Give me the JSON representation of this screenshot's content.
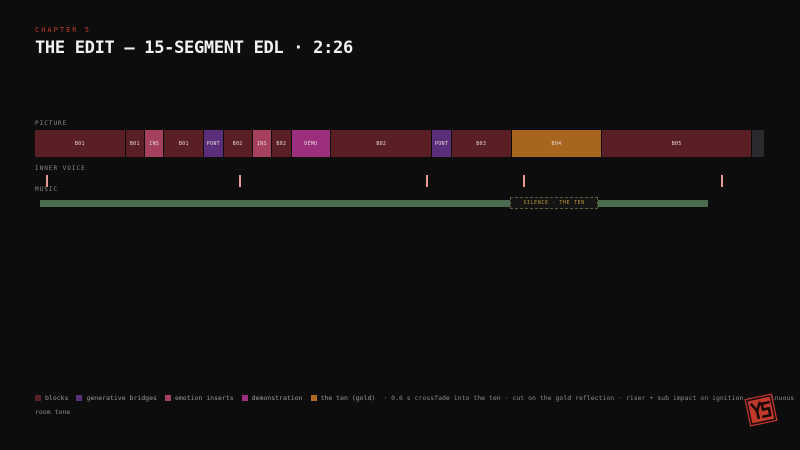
{
  "header": {
    "chapter": "CHAPTER 5",
    "title": "THE EDIT — 15-SEGMENT EDL · 2:26"
  },
  "tracks": {
    "picture_label": "PICTURE",
    "voice_label": "INNER VOICE",
    "music_label": "MUSIC"
  },
  "picture_segments": [
    {
      "label": "B01",
      "kind": "blocks",
      "duration": 11.2
    },
    {
      "label": "B01",
      "kind": "blocks",
      "duration": 2.4
    },
    {
      "label": "INS",
      "kind": "emotion",
      "duration": 2.4
    },
    {
      "label": "B01",
      "kind": "blocks",
      "duration": 4.9
    },
    {
      "label": "PONT",
      "kind": "bridge",
      "duration": 2.4
    },
    {
      "label": "B02",
      "kind": "blocks",
      "duration": 3.6
    },
    {
      "label": "INS",
      "kind": "emotion",
      "duration": 2.4
    },
    {
      "label": "B02",
      "kind": "blocks",
      "duration": 2.4
    },
    {
      "label": "DÉMO",
      "kind": "demo",
      "duration": 4.9
    },
    {
      "label": "B02",
      "kind": "blocks",
      "duration": 12.5
    },
    {
      "label": "PONT",
      "kind": "bridge",
      "duration": 2.4
    },
    {
      "label": "B03",
      "kind": "blocks",
      "duration": 7.4
    },
    {
      "label": "B04",
      "kind": "gold",
      "duration": 11.2
    },
    {
      "label": "B05",
      "kind": "blocks",
      "duration": 18.5
    },
    {
      "label": "",
      "kind": "tail",
      "duration": 1.6
    }
  ],
  "voice_cues": [
    1.5,
    28,
    53.6,
    66.8,
    94
  ],
  "music": {
    "silence_label": "SILENCE · THE TEN"
  },
  "legend": {
    "items": [
      {
        "label": "blocks",
        "color": "#5a1f24"
      },
      {
        "label": "generative bridges",
        "color": "#5b2e7a"
      },
      {
        "label": "emotion inserts",
        "color": "#a5405e"
      },
      {
        "label": "demonstration",
        "color": "#9b2f7e"
      },
      {
        "label": "the ten (gold)",
        "color": "#b06a1c"
      }
    ],
    "notes": "·   0.6 s crossfade into the ten · cut on the gold reflection · riser + sub impact on ignition · continuous room tone"
  },
  "colors": {
    "blocks": "#5a1f24",
    "bridge": "#5b2e7a",
    "emotion": "#a5405e",
    "demo": "#9b2f7e",
    "gold": "#a8651f",
    "tail": "#2a2a2e",
    "accent": "#c0392b"
  },
  "logo": {
    "icon": "ys-logo-icon"
  }
}
